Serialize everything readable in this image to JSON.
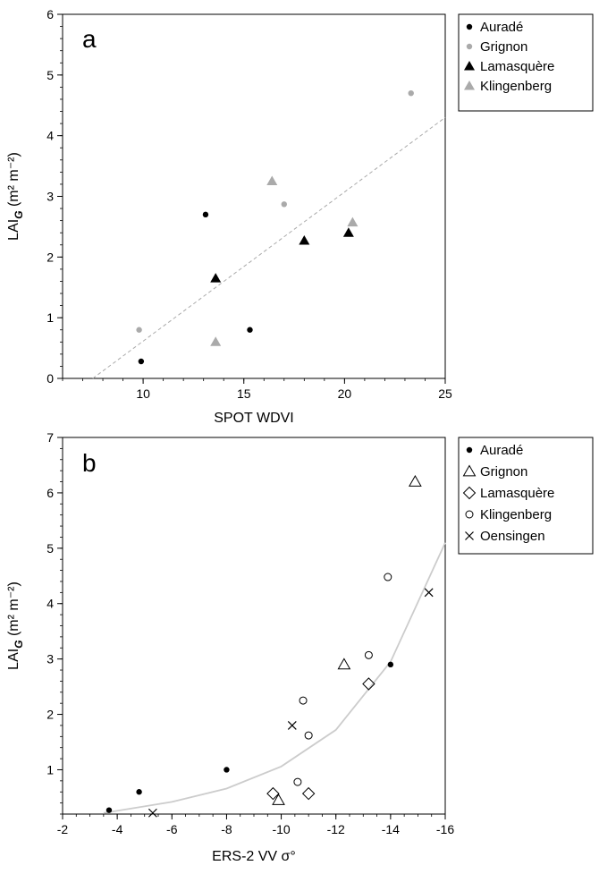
{
  "chart_data": [
    {
      "type": "scatter",
      "panel_label": "a",
      "xlabel": "SPOT WDVI",
      "ylabel_main": "LAI",
      "ylabel_sub": "G",
      "ylabel_unit": " (m² m⁻²)",
      "xlim": [
        6,
        25
      ],
      "ylim": [
        0,
        6
      ],
      "xticks": [
        "10",
        "15",
        "20",
        "25"
      ],
      "yticks": [
        "0",
        "1",
        "2",
        "3",
        "4",
        "5",
        "6"
      ],
      "grid": false,
      "legend_position": "right-outside",
      "series": [
        {
          "name": "Auradé",
          "marker": "dot",
          "color": "#000000",
          "points": [
            [
              9.9,
              0.28
            ],
            [
              13.1,
              2.7
            ],
            [
              15.3,
              0.8
            ]
          ]
        },
        {
          "name": "Grignon",
          "marker": "dot",
          "color": "#aaaaaa",
          "points": [
            [
              9.8,
              0.8
            ],
            [
              17.0,
              2.87
            ],
            [
              23.3,
              4.7
            ]
          ]
        },
        {
          "name": "Lamasquère",
          "marker": "triangle",
          "color": "#000000",
          "points": [
            [
              13.6,
              1.65
            ],
            [
              18.0,
              2.27
            ],
            [
              20.2,
              2.4
            ]
          ]
        },
        {
          "name": "Klingenberg",
          "marker": "triangle",
          "color": "#aaaaaa",
          "points": [
            [
              13.6,
              0.6
            ],
            [
              16.4,
              3.25
            ],
            [
              20.4,
              2.57
            ]
          ]
        }
      ],
      "fit": {
        "style": "dashed",
        "color": "#aaaaaa",
        "points": [
          [
            7.5,
            0.0
          ],
          [
            25.0,
            4.3
          ]
        ]
      }
    },
    {
      "type": "scatter",
      "panel_label": "b",
      "xlabel": "ERS-2 VV σ°",
      "ylabel_main": "LAI",
      "ylabel_sub": "G",
      "ylabel_unit": " (m² m⁻²)",
      "xlim": [
        -2,
        -16
      ],
      "ylim": [
        0.2,
        7
      ],
      "xticks": [
        "-2",
        "-4",
        "-6",
        "-8",
        "-10",
        "-12",
        "-14",
        "-16"
      ],
      "yticks": [
        "1",
        "2",
        "3",
        "4",
        "5",
        "6",
        "7"
      ],
      "grid": false,
      "legend_position": "right-outside",
      "series": [
        {
          "name": "Auradé",
          "marker": "dot",
          "color": "#000000",
          "points": [
            [
              -3.7,
              0.27
            ],
            [
              -4.8,
              0.6
            ],
            [
              -8.0,
              1.0
            ],
            [
              -14.0,
              2.9
            ]
          ]
        },
        {
          "name": "Grignon",
          "marker": "open-triangle",
          "color": "#000000",
          "points": [
            [
              -9.9,
              0.45
            ],
            [
              -12.3,
              2.9
            ],
            [
              -14.9,
              6.2
            ]
          ]
        },
        {
          "name": "Lamasquère",
          "marker": "open-diamond",
          "color": "#000000",
          "points": [
            [
              -9.7,
              0.57
            ],
            [
              -11.0,
              0.57
            ],
            [
              -13.2,
              2.55
            ]
          ]
        },
        {
          "name": "Klingenberg",
          "marker": "open-circle",
          "color": "#000000",
          "points": [
            [
              -10.6,
              0.78
            ],
            [
              -10.8,
              2.25
            ],
            [
              -11.0,
              1.62
            ],
            [
              -13.2,
              3.07
            ],
            [
              -13.9,
              4.48
            ]
          ]
        },
        {
          "name": "Oensingen",
          "marker": "cross",
          "color": "#000000",
          "points": [
            [
              -5.3,
              0.22
            ],
            [
              -10.4,
              1.8
            ],
            [
              -15.4,
              4.2
            ]
          ]
        }
      ],
      "fit": {
        "style": "solid",
        "color": "#cccccc",
        "curve": "exponential",
        "points": [
          [
            -3.5,
            0.22
          ],
          [
            -6,
            0.42
          ],
          [
            -8,
            0.66
          ],
          [
            -10,
            1.06
          ],
          [
            -12,
            1.72
          ],
          [
            -14,
            2.95
          ],
          [
            -16,
            5.1
          ]
        ]
      }
    }
  ]
}
